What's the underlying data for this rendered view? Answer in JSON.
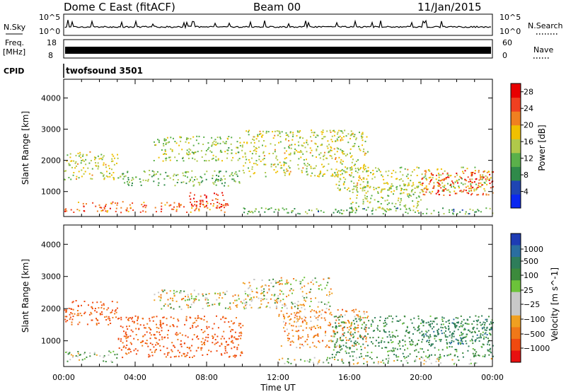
{
  "header": {
    "station": "Dome C East (fitACF)",
    "beam": "Beam 00",
    "date": "11/Jan/2015"
  },
  "colors": {
    "power": [
      "#0a28f0",
      "#1f45b3",
      "#2f8a4a",
      "#5ab04a",
      "#b0c84a",
      "#f0c000",
      "#f08020",
      "#f04020",
      "#e80000"
    ],
    "velocity": [
      "#1e3cb4",
      "#2a6ea0",
      "#2e7d5a",
      "#3c8a3c",
      "#6cc23a",
      "#c8c8c8",
      "#c8c8c8",
      "#f0a020",
      "#f07818",
      "#f04a10",
      "#e81010"
    ]
  },
  "top_panels": {
    "nsky": {
      "label": "N.Sky",
      "left_ticks": [
        "10^5",
        "10^0"
      ],
      "right_ticks": [
        "10^5",
        "10^0"
      ],
      "right_label": "N.Search"
    },
    "freq": {
      "label_line1": "Freq.",
      "label_line2": "[MHz]",
      "left_ticks": [
        "18",
        "8"
      ],
      "right_ticks": [
        "60",
        "0"
      ],
      "right_label": "Nave"
    },
    "cpid": {
      "label": "CPID",
      "text": "twofsound 3501"
    }
  },
  "chart_data": [
    {
      "type": "heatmap",
      "name": "power",
      "xlabel": "Time UT",
      "ylabel": "Slant Range [km]",
      "xlim": [
        0,
        24
      ],
      "ylim": [
        200,
        4600
      ],
      "xticks": [
        "00:00",
        "04:00",
        "08:00",
        "12:00",
        "16:00",
        "20:00",
        "00:00"
      ],
      "yticks": [
        1000,
        2000,
        3000,
        4000
      ],
      "colorbar": {
        "label": "Power [dB]",
        "ticks": [
          4,
          8,
          12,
          16,
          20,
          24,
          28
        ],
        "range": [
          0,
          30
        ]
      },
      "regions": [
        {
          "t0": 0.0,
          "t1": 9.2,
          "r0": 350,
          "r1": 700,
          "level": 24
        },
        {
          "t0": 7.0,
          "t1": 9.0,
          "r0": 500,
          "r1": 1000,
          "level": 28
        },
        {
          "t0": 0.0,
          "t1": 3.0,
          "r0": 1400,
          "r1": 2300,
          "level": 16
        },
        {
          "t0": 3.0,
          "t1": 10.0,
          "r0": 1200,
          "r1": 1700,
          "level": 12
        },
        {
          "t0": 5.0,
          "t1": 10.0,
          "r0": 2000,
          "r1": 2800,
          "level": 14
        },
        {
          "t0": 10.0,
          "t1": 17.0,
          "r0": 1500,
          "r1": 3000,
          "level": 16
        },
        {
          "t0": 15.0,
          "t1": 24.0,
          "r0": 1000,
          "r1": 1800,
          "level": 16
        },
        {
          "t0": 20.0,
          "t1": 24.0,
          "r0": 900,
          "r1": 1700,
          "level": 26
        },
        {
          "t0": 16.0,
          "t1": 20.0,
          "r0": 400,
          "r1": 1200,
          "level": 14
        },
        {
          "t0": 10.0,
          "t1": 24.0,
          "r0": 300,
          "r1": 500,
          "level": 10
        }
      ]
    },
    {
      "type": "heatmap",
      "name": "velocity",
      "xlabel": "Time UT",
      "ylabel": "Slant Range [km]",
      "xlim": [
        0,
        24
      ],
      "ylim": [
        200,
        4600
      ],
      "xticks": [
        "00:00",
        "04:00",
        "08:00",
        "12:00",
        "16:00",
        "20:00",
        "00:00"
      ],
      "yticks": [
        1000,
        2000,
        3000,
        4000
      ],
      "colorbar": {
        "label": "Velocity [m s^-1]",
        "ticks": [
          "1000",
          "500",
          "100",
          "25",
          "−25",
          "−100",
          "−500",
          "−1000"
        ]
      },
      "regions": [
        {
          "t0": 0.0,
          "t1": 3.0,
          "r0": 1500,
          "r1": 2300,
          "level": -300
        },
        {
          "t0": 3.0,
          "t1": 10.0,
          "r0": 500,
          "r1": 1800,
          "level": -300
        },
        {
          "t0": 0.0,
          "t1": 3.0,
          "r0": 350,
          "r1": 700,
          "level": 80
        },
        {
          "t0": 10.0,
          "t1": 15.0,
          "r0": 2000,
          "r1": 3000,
          "level": 0
        },
        {
          "t0": 12.0,
          "t1": 17.0,
          "r0": 800,
          "r1": 2000,
          "level": -150
        },
        {
          "t0": 15.0,
          "t1": 24.0,
          "r0": 500,
          "r1": 1800,
          "level": 200
        },
        {
          "t0": 20.0,
          "t1": 24.0,
          "r0": 900,
          "r1": 1700,
          "level": 400
        },
        {
          "t0": 5.0,
          "t1": 10.0,
          "r0": 2000,
          "r1": 2600,
          "level": 0
        },
        {
          "t0": 12.0,
          "t1": 24.0,
          "r0": 300,
          "r1": 500,
          "level": 50
        }
      ]
    }
  ]
}
